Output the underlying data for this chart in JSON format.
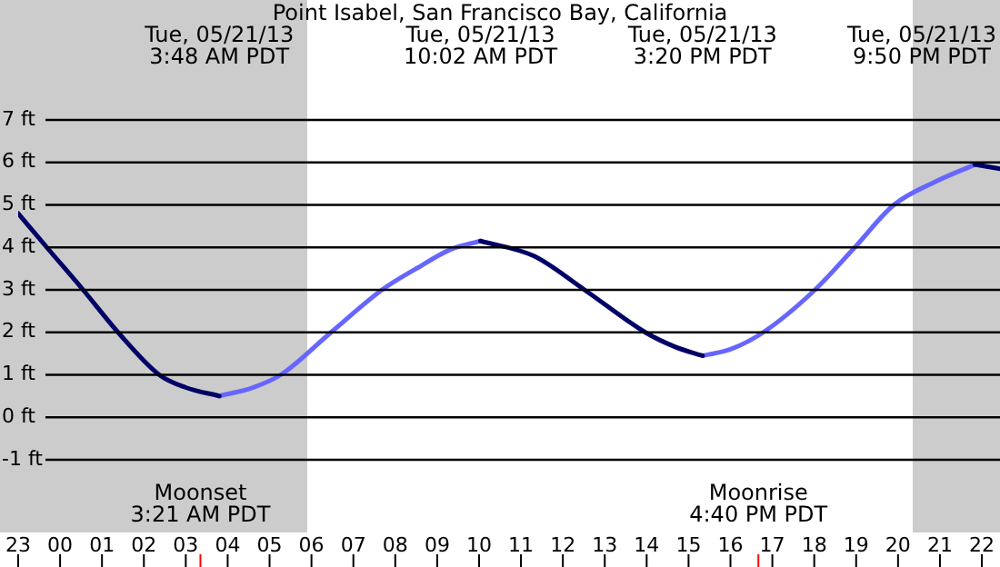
{
  "chart_data": {
    "type": "line",
    "title": "Point Isabel, San Francisco Bay, California",
    "xlim": [
      "--05-20T23:00",
      "--05-21T22:26"
    ],
    "xticks": [
      {
        "value": "--05-20T23:00",
        "label": "23"
      },
      {
        "value": "--05-21T00:00",
        "label": "00"
      },
      {
        "value": "--05-21T01:00",
        "label": "01"
      },
      {
        "value": "--05-21T02:00",
        "label": "02"
      },
      {
        "value": "--05-21T03:00",
        "label": "03"
      },
      {
        "value": "--05-21T04:00",
        "label": "04"
      },
      {
        "value": "--05-21T05:00",
        "label": "05"
      },
      {
        "value": "--05-21T06:00",
        "label": "06"
      },
      {
        "value": "--05-21T07:00",
        "label": "07"
      },
      {
        "value": "--05-21T08:00",
        "label": "08"
      },
      {
        "value": "--05-21T09:00",
        "label": "09"
      },
      {
        "value": "--05-21T10:00",
        "label": "10"
      },
      {
        "value": "--05-21T11:00",
        "label": "11"
      },
      {
        "value": "--05-21T12:00",
        "label": "12"
      },
      {
        "value": "--05-21T13:00",
        "label": "13"
      },
      {
        "value": "--05-21T14:00",
        "label": "14"
      },
      {
        "value": "--05-21T15:00",
        "label": "15"
      },
      {
        "value": "--05-21T16:00",
        "label": "16"
      },
      {
        "value": "--05-21T17:00",
        "label": "17"
      },
      {
        "value": "--05-21T18:00",
        "label": "18"
      },
      {
        "value": "--05-21T19:00",
        "label": "19"
      },
      {
        "value": "--05-21T20:00",
        "label": "20"
      },
      {
        "value": "--05-21T21:00",
        "label": "21"
      },
      {
        "value": "--05-21T22:00",
        "label": "22"
      }
    ],
    "ylim": [
      -1,
      7
    ],
    "yticks": [
      {
        "value": -1,
        "label": "-1 ft"
      },
      {
        "value": 0,
        "label": "0 ft"
      },
      {
        "value": 1,
        "label": "1 ft"
      },
      {
        "value": 2,
        "label": "2 ft"
      },
      {
        "value": 3,
        "label": "3 ft"
      },
      {
        "value": 4,
        "label": "4 ft"
      },
      {
        "value": 5,
        "label": "5 ft"
      },
      {
        "value": 6,
        "label": "6 ft"
      },
      {
        "value": 7,
        "label": "7 ft"
      }
    ],
    "grid": "y",
    "series": [
      {
        "color": "#000066",
        "x": [
          "--05-20T23:00",
          "--05-20T23:41",
          "--05-21T00:33",
          "--05-21T01:23",
          "--05-21T02:22",
          "--05-21T03:00",
          "--05-21T03:48",
          "--05-21T07:00",
          "--05-21T10:02",
          "--05-21T11:18",
          "--05-21T12:31",
          "--05-21T13:58",
          "--05-21T14:42",
          "--05-21T15:20",
          "--05-21T18:00",
          "--05-21T21:50",
          "--05-21T22:26"
        ],
        "values": [
          4.8,
          4,
          3,
          2,
          1,
          0.7,
          0.5,
          null,
          4.15,
          3.8,
          3,
          2,
          1.65,
          1.45,
          null,
          5.95,
          5.85
        ]
      },
      {
        "color": "#6666ff",
        "x": [
          "--05-21T03:48",
          "--05-21T04:36",
          "--05-21T05:16",
          "--05-21T06:28",
          "--05-21T07:41",
          "--05-21T08:30",
          "--05-21T09:19",
          "--05-21T10:02",
          "--05-21T12:30",
          "--05-21T15:20",
          "--05-21T16:00",
          "--05-21T16:47",
          "--05-21T18:01",
          "--05-21T18:58",
          "--05-21T19:54",
          "--05-21T20:54",
          "--05-21T21:50"
        ],
        "values": [
          0.5,
          0.7,
          1,
          2,
          3,
          3.5,
          3.95,
          4.15,
          null,
          1.45,
          1.6,
          2,
          3,
          4,
          5,
          5.55,
          5.95
        ]
      }
    ],
    "bands": [
      {
        "axis": "x",
        "from": "--05-20T23:00",
        "to": "--05-21T05:54",
        "color": "#cccccc"
      },
      {
        "axis": "x",
        "from": "--05-21T20:21",
        "to": "--05-21T22:26",
        "color": "#cccccc"
      }
    ],
    "ref_lines": [
      {
        "axis": "x",
        "value": "--05-21T03:21",
        "label": "Moonset\n3:21 AM PDT",
        "color": "#ff0000"
      },
      {
        "axis": "x",
        "value": "--05-21T16:40",
        "label": "Moonrise\n4:40 PM PDT",
        "color": "#ff0000"
      }
    ],
    "annotations": [
      "Tue, 05/21/13\n3:48 AM PDT",
      "Tue, 05/21/13\n10:02 AM PDT",
      "Tue, 05/21/13\n3:20 PM PDT",
      "Tue, 05/21/13\n9:50 PM PDT"
    ]
  }
}
